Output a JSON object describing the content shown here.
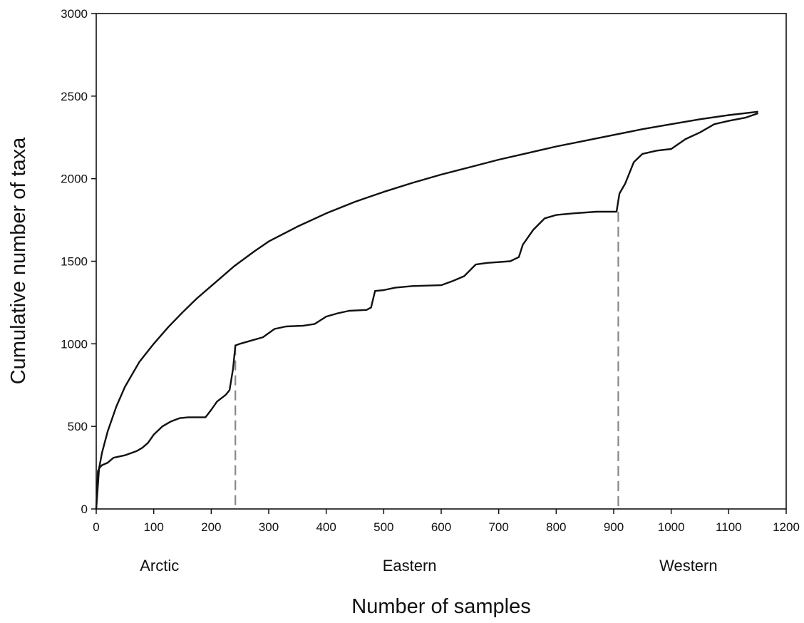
{
  "chart_data": {
    "type": "line",
    "xlabel": "Number of samples",
    "ylabel": "Cumulative number of taxa",
    "xlim": [
      0,
      1200
    ],
    "ylim": [
      0,
      3000
    ],
    "xticks": [
      0,
      100,
      200,
      300,
      400,
      500,
      600,
      700,
      800,
      900,
      1000,
      1100,
      1200
    ],
    "yticks": [
      0,
      500,
      1000,
      1500,
      2000,
      2500,
      3000
    ],
    "grid": false,
    "colors": {
      "line": "#111111",
      "divider": "#888888"
    },
    "series": [
      {
        "style": "solid",
        "x": [
          0,
          5,
          10,
          20,
          35,
          50,
          75,
          100,
          125,
          150,
          175,
          200,
          240,
          275,
          300,
          350,
          400,
          450,
          500,
          550,
          600,
          650,
          700,
          750,
          800,
          850,
          900,
          950,
          1000,
          1050,
          1100,
          1150
        ],
        "y": [
          0,
          245,
          340,
          470,
          620,
          740,
          890,
          1000,
          1100,
          1190,
          1275,
          1350,
          1470,
          1560,
          1620,
          1710,
          1790,
          1860,
          1920,
          1975,
          2025,
          2070,
          2115,
          2155,
          2195,
          2230,
          2265,
          2300,
          2330,
          2360,
          2385,
          2405
        ]
      },
      {
        "style": "solid",
        "x": [
          0,
          3,
          6,
          10,
          20,
          30,
          50,
          70,
          80,
          90,
          100,
          115,
          130,
          145,
          160,
          190,
          200,
          210,
          225,
          232,
          238,
          242,
          250,
          270,
          290,
          310,
          330,
          360,
          380,
          400,
          420,
          440,
          470,
          478,
          485,
          500,
          520,
          550,
          600,
          620,
          640,
          660,
          680,
          720,
          735,
          742,
          760,
          780,
          800,
          830,
          870,
          905,
          910,
          920,
          935,
          950,
          975,
          1000,
          1025,
          1050,
          1075,
          1100,
          1130,
          1150
        ],
        "y": [
          0,
          230,
          250,
          265,
          280,
          310,
          325,
          350,
          370,
          400,
          450,
          500,
          530,
          550,
          555,
          555,
          600,
          650,
          690,
          720,
          850,
          990,
          1000,
          1020,
          1040,
          1090,
          1105,
          1110,
          1120,
          1165,
          1185,
          1200,
          1205,
          1220,
          1320,
          1325,
          1340,
          1350,
          1355,
          1380,
          1410,
          1480,
          1490,
          1500,
          1525,
          1600,
          1690,
          1760,
          1780,
          1790,
          1800,
          1800,
          1910,
          1970,
          2100,
          2150,
          2170,
          2180,
          2240,
          2280,
          2330,
          2350,
          2370,
          2395
        ]
      }
    ],
    "dividers": [
      {
        "x": 242,
        "y_top": 990
      },
      {
        "x": 908,
        "y_top": 1800
      }
    ],
    "annotations": [
      {
        "text": "Arctic",
        "x": 110
      },
      {
        "text": "Eastern",
        "x": 545
      },
      {
        "text": "Western",
        "x": 1030
      }
    ]
  }
}
